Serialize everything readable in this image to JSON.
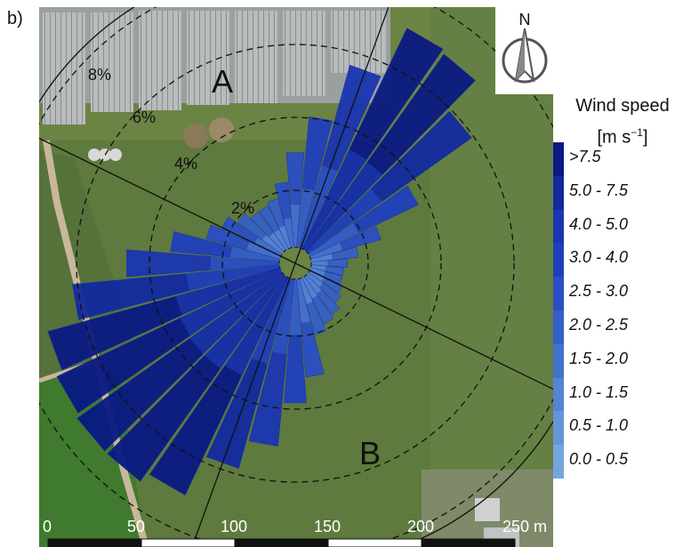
{
  "panel_label": "b)",
  "north_label": "N",
  "legend": {
    "title_line1": "Wind speed",
    "title_line2": "[m s",
    "title_sup": "−1",
    "title_close": "]",
    "classes": [
      ">7.5",
      "5.0 - 7.5",
      "4.0 - 5.0",
      "3.0 - 4.0",
      "2.5 - 3.0",
      "2.0 - 2.5",
      "1.5 - 2.0",
      "1.0 - 1.5",
      "0.5 - 1.0",
      "0.0 - 0.5"
    ],
    "colors": [
      "#0a1a82",
      "#122a9e",
      "#1a36b0",
      "#2040bc",
      "#2a4ec4",
      "#3560c8",
      "#4372cc",
      "#5484d2",
      "#6496d8",
      "#74a6de"
    ]
  },
  "rings": [
    "2%",
    "4%",
    "6%",
    "8%"
  ],
  "sector_labels": [
    "A",
    "B"
  ],
  "scale": {
    "ticks": [
      "0",
      "50",
      "100",
      "150",
      "200",
      "250 m"
    ]
  },
  "chart_data": {
    "type": "wind-rose",
    "title": "",
    "legend_title": "Wind speed [m s−1]",
    "ring_labels": [
      "2%",
      "4%",
      "6%",
      "8%"
    ],
    "ring_max_percent": 8,
    "sectors_deg": [
      0,
      10,
      20,
      30,
      40,
      50,
      60,
      70,
      80,
      90,
      100,
      110,
      120,
      130,
      140,
      150,
      160,
      170,
      180,
      190,
      200,
      210,
      220,
      230,
      240,
      250,
      260,
      270,
      280,
      290,
      300,
      310,
      320,
      330,
      340,
      350
    ],
    "frequency_percent": [
      2.6,
      3.6,
      5.2,
      6.7,
      6.6,
      5.5,
      3.3,
      2.0,
      1.3,
      1.0,
      0.9,
      0.9,
      1.0,
      1.1,
      1.3,
      1.4,
      1.6,
      2.7,
      3.4,
      4.6,
      5.4,
      6.6,
      6.9,
      6.9,
      6.8,
      6.6,
      5.7,
      4.2,
      3.0,
      2.1,
      1.8,
      1.5,
      1.3,
      1.3,
      1.4,
      1.8
    ]
  }
}
